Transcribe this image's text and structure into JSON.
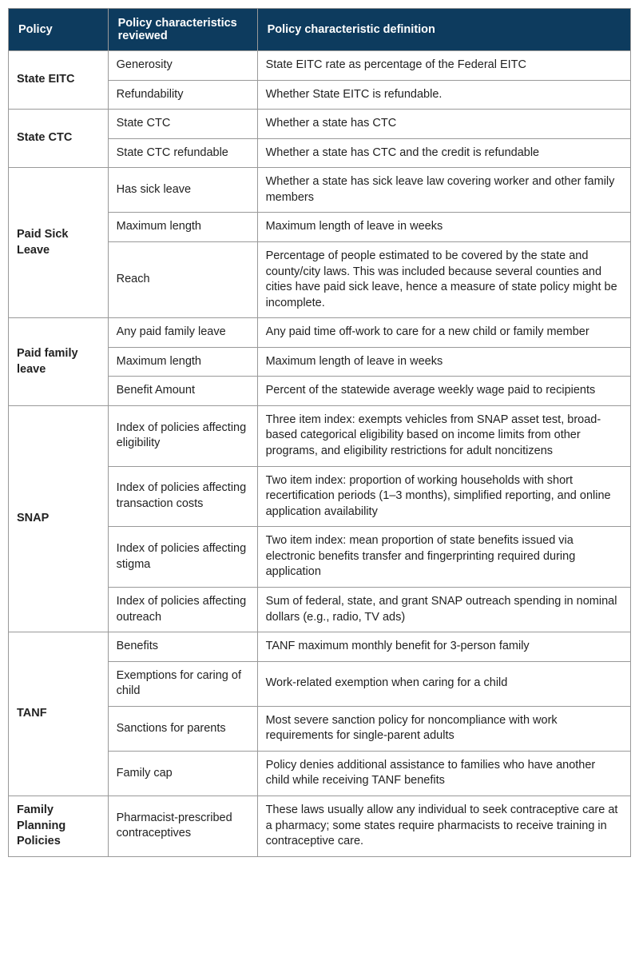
{
  "headers": {
    "policy": "Policy",
    "characteristic": "Policy characteristics reviewed",
    "definition": "Policy characteristic definition"
  },
  "rows": [
    {
      "policy": "State EITC",
      "span": 2,
      "char": "Generosity",
      "def": "State EITC rate as percentage of the Federal EITC"
    },
    {
      "char": "Refundability",
      "def": "Whether State EITC is refundable."
    },
    {
      "policy": "State CTC",
      "span": 2,
      "char": "State CTC",
      "def": "Whether a state has CTC"
    },
    {
      "char": "State CTC refundable",
      "def": "Whether a state has CTC and the credit is refundable"
    },
    {
      "policy": "Paid Sick Leave",
      "span": 3,
      "char": "Has sick leave",
      "def": "Whether a state has sick leave law covering worker and other family members"
    },
    {
      "char": "Maximum length",
      "def": "Maximum length of leave in weeks"
    },
    {
      "char": "Reach",
      "def": "Percentage of people estimated to be covered by the state and county/city laws. This was included because several counties and cities have paid sick leave, hence a measure of state policy might be incomplete."
    },
    {
      "policy": "Paid family leave",
      "span": 3,
      "char": "Any paid family leave",
      "def": "Any paid time off-work to care for a new child or family member"
    },
    {
      "char": "Maximum length",
      "def": "Maximum length of leave in weeks"
    },
    {
      "char": "Benefit Amount",
      "def": "Percent of the statewide average weekly wage paid to recipients"
    },
    {
      "policy": "SNAP",
      "span": 4,
      "char": "Index of policies affecting eligibility",
      "def": "Three item index: exempts vehicles from SNAP asset test, broad-based categorical eligibility based on income limits from other programs, and eligibility restrictions for adult noncitizens"
    },
    {
      "char": "Index of policies affecting transaction costs",
      "def": "Two item index: proportion of working households with short recertification periods (1–3 months), simplified reporting, and online application availability"
    },
    {
      "char": "Index of policies affecting stigma",
      "def": "Two item index: mean proportion of state benefits issued via electronic benefits transfer and fingerprinting required during application"
    },
    {
      "char": "Index of policies affecting outreach",
      "def": "Sum of federal, state, and grant SNAP outreach spending in nominal dollars (e.g., radio, TV ads)"
    },
    {
      "policy": "TANF",
      "span": 4,
      "char": "Benefits",
      "def": "TANF maximum monthly benefit for 3-person family"
    },
    {
      "char": "Exemptions for caring of child",
      "def": "Work-related exemption when caring for a child"
    },
    {
      "char": "Sanctions for parents",
      "def": "Most severe sanction policy for noncompliance with work requirements for single-parent adults"
    },
    {
      "char": "Family cap",
      "def": "Policy denies additional assistance to families who have another child while receiving TANF benefits"
    },
    {
      "policy": "Family Planning Policies",
      "span": 1,
      "char": "Pharmacist-prescribed contraceptives",
      "def": "These laws usually allow any individual to seek contraceptive care at a pharmacy; some states require pharmacists to receive training in contraceptive care."
    }
  ]
}
